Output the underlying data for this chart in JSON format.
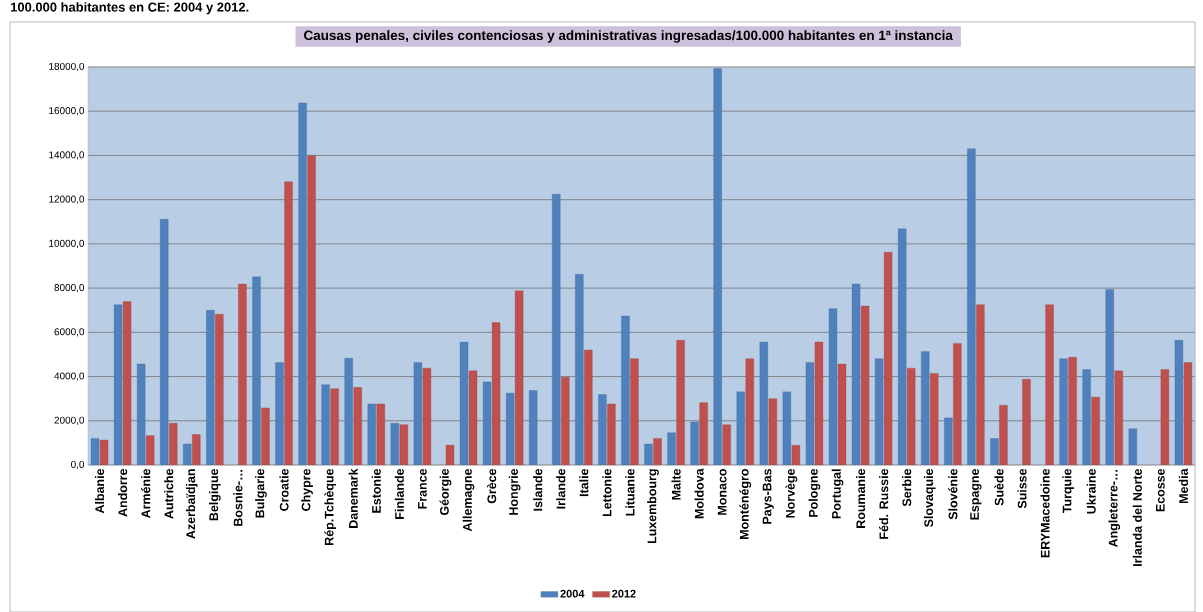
{
  "chart_data": {
    "type": "bar",
    "title": "Causas penales, civiles contenciosas y administrativas ingresadas/100.000 habitantes en 1ª instancia",
    "annotations": [
      "100.000 habitantes en CE: 2004 y 2012."
    ],
    "categories": [
      "Albanie",
      "Andorre",
      "Arménie",
      "Autriche",
      "Azerbaïdjan",
      "Belgique",
      "Bosnie-…",
      "Bulgarie",
      "Croatie",
      "Chypre",
      "Rép.Tchèque",
      "Danemark",
      "Estonie",
      "Finlande",
      "France",
      "Géorgie",
      "Allemagne",
      "Grèce",
      "Hongrie",
      "Islande",
      "Irlande",
      "Italie",
      "Lettonie",
      "Lituanie",
      "Luxembourg",
      "Malte",
      "Moldova",
      "Monaco",
      "Monténégro",
      "Pays-Bas",
      "Norvège",
      "Pologne",
      "Portugal",
      "Roumanie",
      "Féd. Russie",
      "Serbie",
      "Slovaquie",
      "Slovénie",
      "Espagne",
      "Suède",
      "Suisse",
      "ERYMacedoine",
      "Turquie",
      "Ukraine",
      "Angleterre-…",
      "Irlanda del Norte",
      "Ecosse",
      "Media"
    ],
    "series": [
      {
        "name": "2004",
        "color": "#4f81bd",
        "values": [
          1200,
          7250,
          4570,
          11110,
          950,
          7000,
          null,
          8510,
          4630,
          16370,
          3630,
          4830,
          2760,
          1890,
          4630,
          null,
          5560,
          3760,
          3250,
          3370,
          12250,
          8630,
          3190,
          6740,
          950,
          1460,
          1950,
          17930,
          3310,
          5560,
          3310,
          4630,
          7070,
          8180,
          4810,
          10680,
          5130,
          2130,
          14300,
          1200,
          null,
          null,
          4810,
          4320,
          7940,
          1640,
          null,
          5640
        ]
      },
      {
        "name": "2012",
        "color": "#c0504d",
        "values": [
          1130,
          7390,
          1330,
          1890,
          1380,
          6820,
          8180,
          2580,
          12810,
          13990,
          3450,
          3510,
          2760,
          1820,
          4380,
          900,
          4260,
          6440,
          7880,
          null,
          3970,
          5200,
          2760,
          4810,
          1200,
          5640,
          2820,
          1820,
          4810,
          3000,
          890,
          5560,
          4570,
          7190,
          9620,
          4380,
          4140,
          5500,
          7250,
          2700,
          3880,
          7250,
          4870,
          3070,
          4260,
          null,
          4320,
          4630
        ]
      }
    ],
    "ylim": [
      0,
      18000
    ],
    "yticks": [
      {
        "value": 0,
        "label": "0,0"
      },
      {
        "value": 2000,
        "label": "2000,0"
      },
      {
        "value": 4000,
        "label": "4000,0"
      },
      {
        "value": 6000,
        "label": "6000,0"
      },
      {
        "value": 8000,
        "label": "8000,0"
      },
      {
        "value": 10000,
        "label": "10000,0"
      },
      {
        "value": 12000,
        "label": "12000,0"
      },
      {
        "value": 14000,
        "label": "14000,0"
      },
      {
        "value": 16000,
        "label": "16000,0"
      },
      {
        "value": 18000,
        "label": "18000,0"
      }
    ],
    "grid": "y",
    "legend": "bottom"
  }
}
